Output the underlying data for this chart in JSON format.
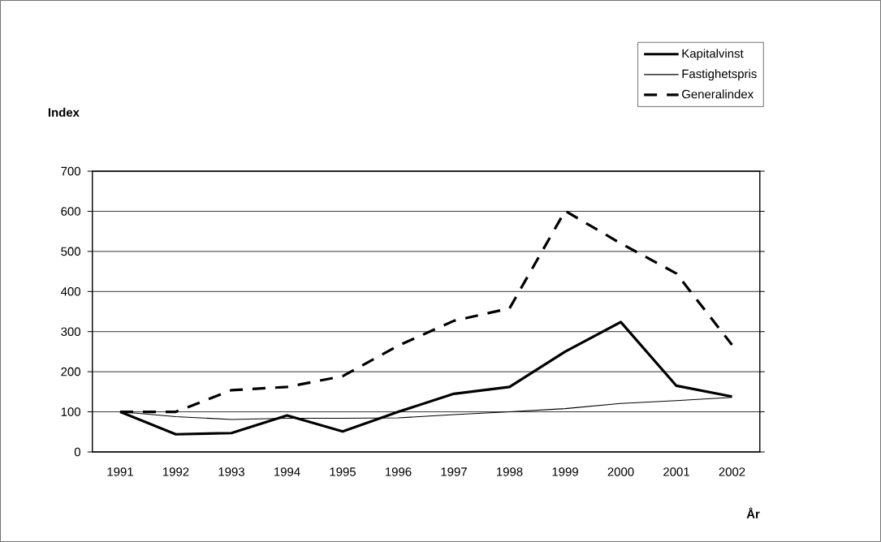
{
  "chart_data": {
    "type": "line",
    "xlabel": "År",
    "ylabel": "Index",
    "categories": [
      "1991",
      "1992",
      "1993",
      "1994",
      "1995",
      "1996",
      "1997",
      "1998",
      "1999",
      "2000",
      "2001",
      "2002"
    ],
    "series": [
      {
        "name": "Kapitalvinst",
        "color": "#000000",
        "line_style": "solid",
        "values": [
          100,
          44,
          47,
          91,
          51,
          100,
          145,
          162,
          250,
          324,
          165,
          138
        ]
      },
      {
        "name": "Fastighetspris",
        "color": "#000000",
        "line_style": "solid",
        "values": [
          100,
          88,
          81,
          84,
          84,
          85,
          93,
          100,
          108,
          121,
          128,
          136
        ]
      },
      {
        "name": "Generalindex",
        "color": "#000000",
        "line_style": "dashed",
        "values": [
          100,
          100,
          154,
          162,
          189,
          265,
          327,
          358,
          601,
          520,
          445,
          267
        ]
      }
    ],
    "ylim": [
      0,
      700
    ],
    "yticks": [
      0,
      100,
      200,
      300,
      400,
      500,
      600,
      700
    ],
    "grid": "y",
    "legend": "top right",
    "marker": "none"
  }
}
